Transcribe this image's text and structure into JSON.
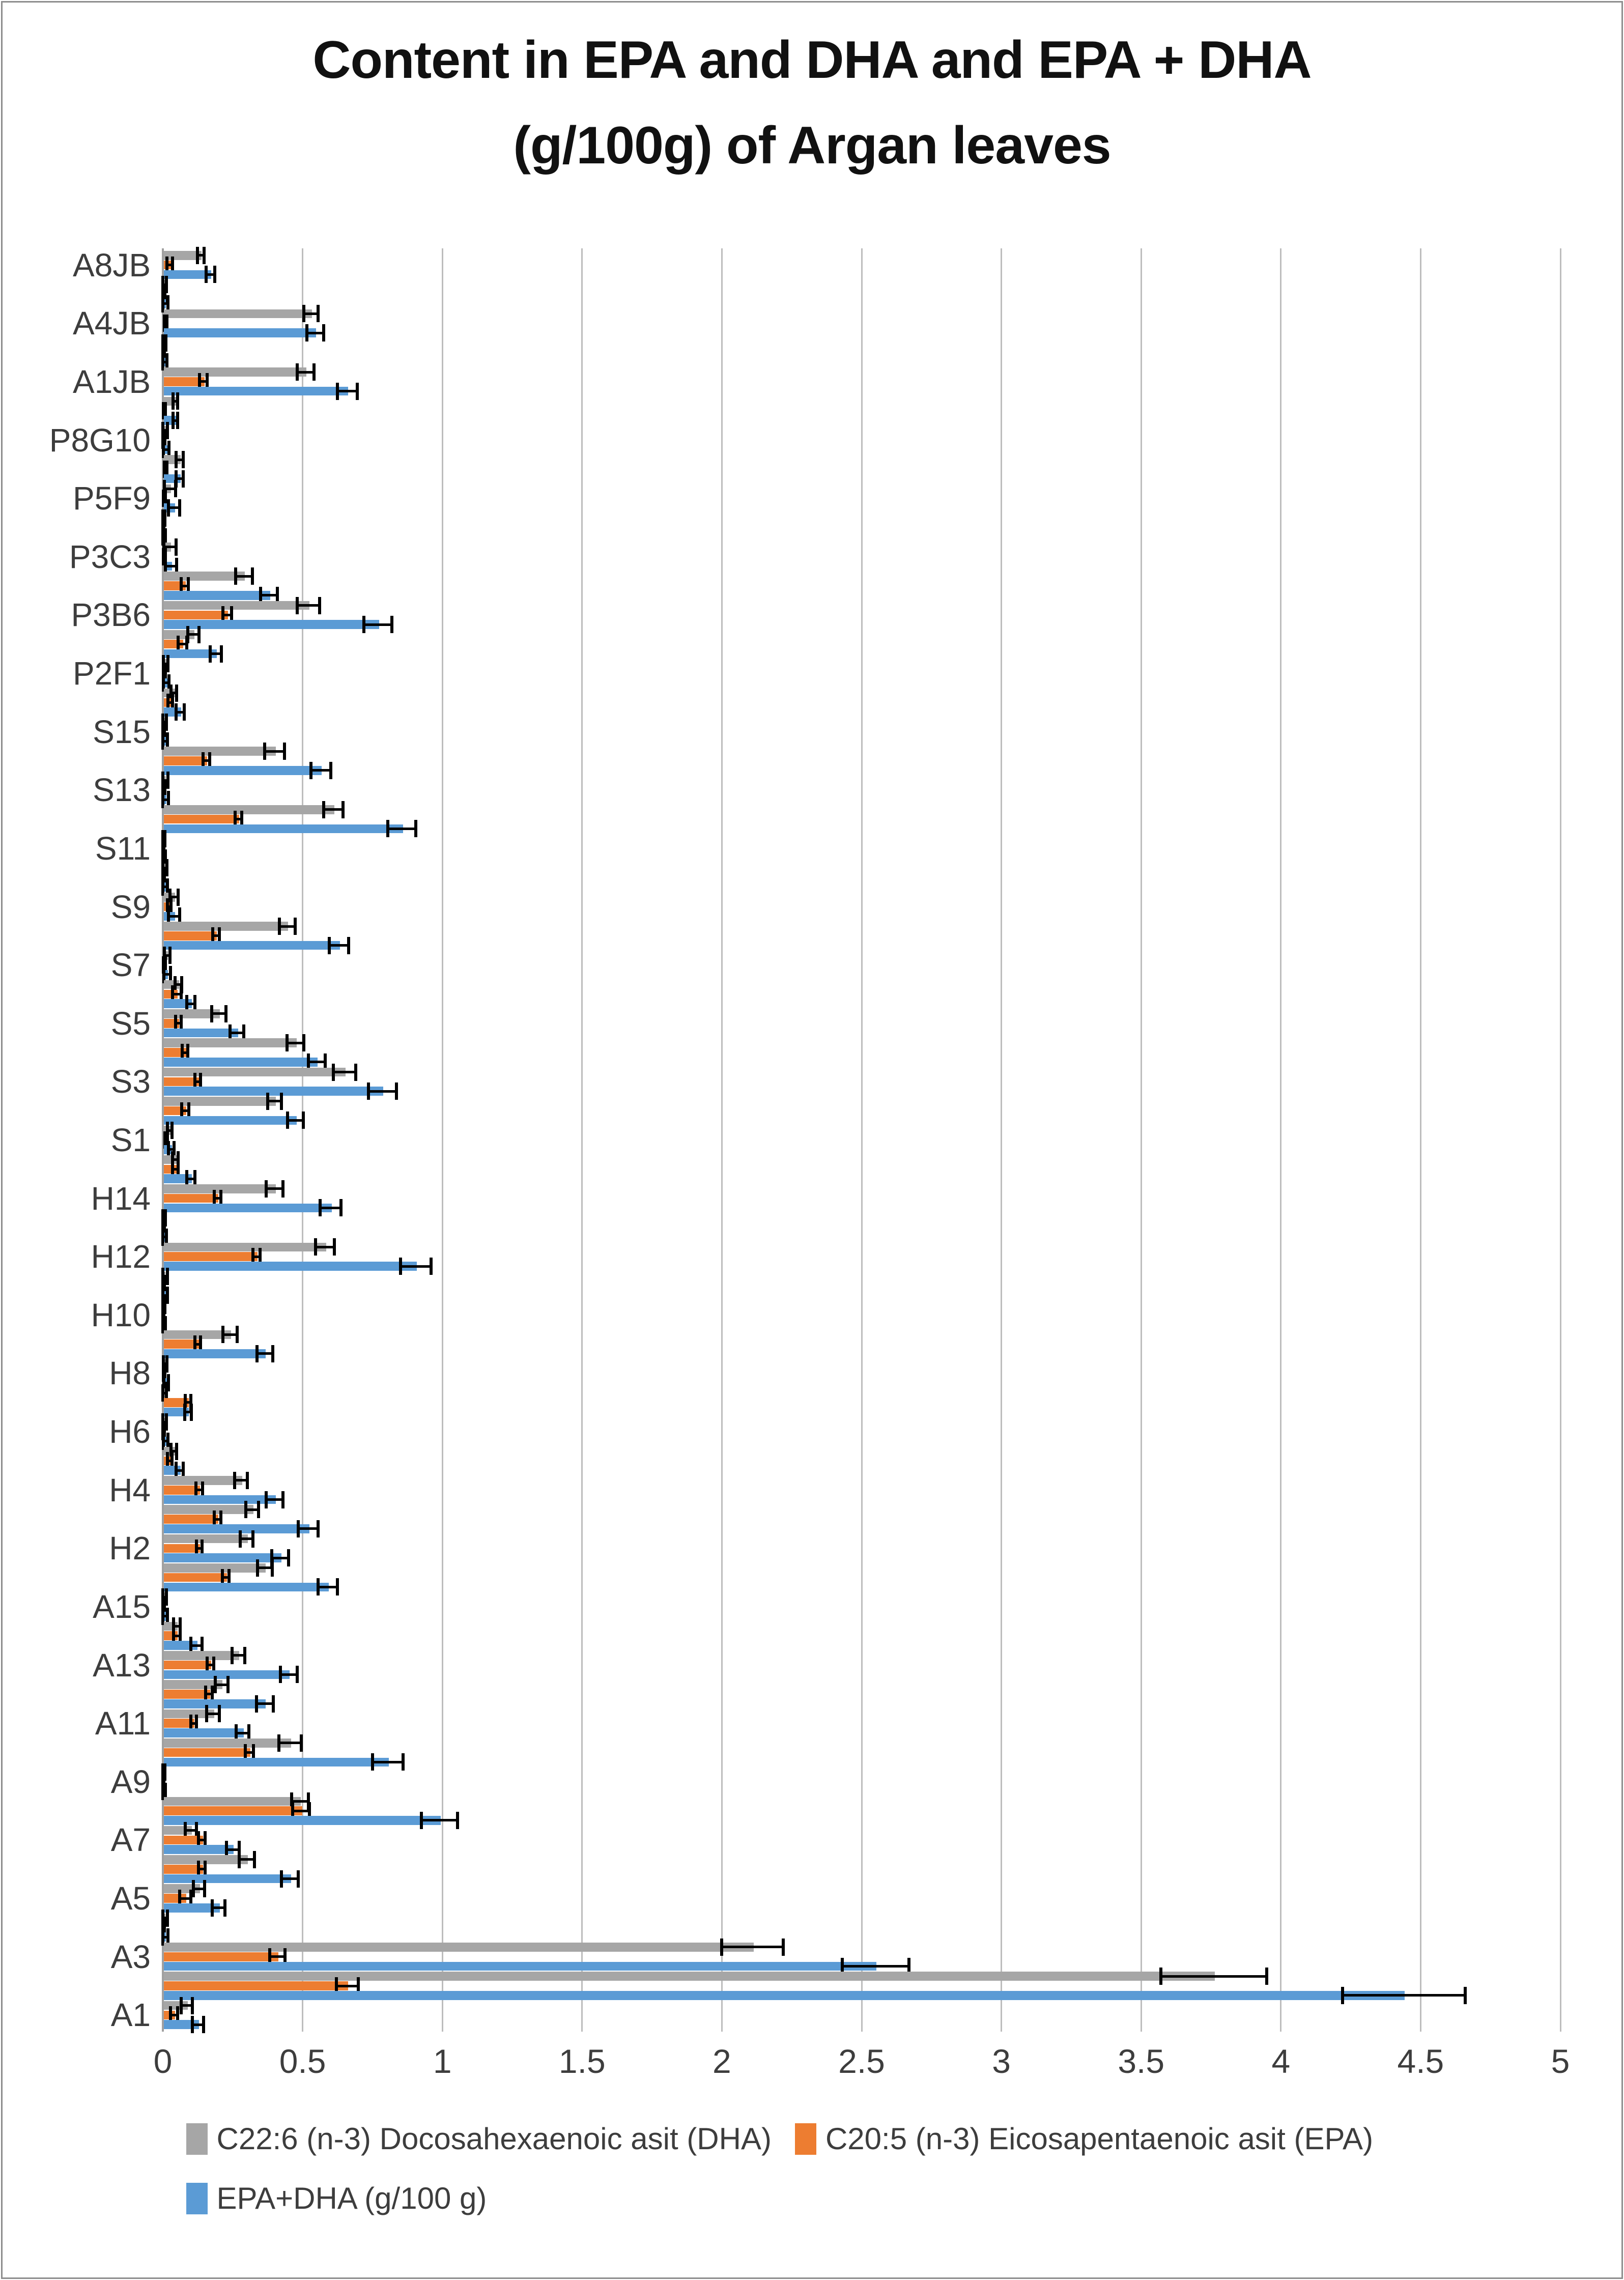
{
  "title": {
    "line1": "Content in EPA and DHA and EPA + DHA",
    "line2": "(g/100g) of Argan leaves"
  },
  "colors": {
    "dha": "#A6A6A6",
    "epa": "#ED7D31",
    "sum": "#5B9BD5",
    "error_bar": "#000000",
    "gridline": "#BDBDBD",
    "axis_line": "#A0A0A0",
    "text": "#3D3D3D",
    "border": "#8C8C8C",
    "background": "#FFFFFF"
  },
  "legend": [
    {
      "key": "dha",
      "label": "C22:6 (n-3) Docosahexaenoic asit (DHA)",
      "color": "#A6A6A6"
    },
    {
      "key": "epa",
      "label": "C20:5 (n-3) Eicosapentaenoic asit (EPA)",
      "color": "#ED7D31"
    },
    {
      "key": "sum",
      "label": "EPA+DHA (g/100 g)",
      "color": "#5B9BD5"
    }
  ],
  "chart_data": {
    "type": "bar",
    "orientation": "horizontal",
    "title": "Content in EPA and DHA and EPA + DHA (g/100g) of Argan leaves",
    "xlabel": "",
    "ylabel": "",
    "xlim": [
      0,
      5
    ],
    "grid": true,
    "legend_position": "bottom",
    "x_ticks": [
      "0",
      "0.5",
      "1",
      "1.5",
      "2",
      "2.5",
      "3",
      "3.5",
      "4",
      "4.5",
      "5"
    ],
    "units": "g/100g",
    "series": [
      {
        "key": "dha",
        "name": "C22:6 (n-3) Docosahexaenoic asit (DHA)",
        "color": "#A6A6A6"
      },
      {
        "key": "epa",
        "name": "C20:5 (n-3) Eicosapentaenoic asit (EPA)",
        "color": "#ED7D31"
      },
      {
        "key": "sum",
        "name": "EPA+DHA (g/100 g)",
        "color": "#5B9BD5"
      }
    ],
    "note": "v = [DHA, EPA, EPA+DHA] values; e = symmetric error bar half-widths; unlabeled rows are intermediate samples shown without axis text",
    "categories": [
      {
        "label": "A8JB",
        "v": [
          0.135,
          0.025,
          0.17
        ],
        "e": [
          0.012,
          0.01,
          0.015
        ]
      },
      {
        "label": "",
        "v": [
          0.005,
          0.003,
          0.008
        ],
        "e": [
          0.008,
          0.004,
          0.01
        ]
      },
      {
        "label": "A4JB",
        "v": [
          0.53,
          0.01,
          0.545
        ],
        "e": [
          0.025,
          0.005,
          0.03
        ]
      },
      {
        "label": "",
        "v": [
          0.005,
          0.003,
          0.006
        ],
        "e": [
          0.006,
          0.003,
          0.008
        ]
      },
      {
        "label": "A1JB",
        "v": [
          0.51,
          0.145,
          0.66
        ],
        "e": [
          0.03,
          0.013,
          0.036
        ]
      },
      {
        "label": "",
        "v": [
          0.045,
          0.005,
          0.045
        ],
        "e": [
          0.008,
          0.004,
          0.008
        ]
      },
      {
        "label": "P8G10",
        "v": [
          0.008,
          0.004,
          0.012
        ],
        "e": [
          0.008,
          0.004,
          0.01
        ]
      },
      {
        "label": "",
        "v": [
          0.06,
          0.01,
          0.06
        ],
        "e": [
          0.012,
          0.005,
          0.012
        ]
      },
      {
        "label": "P5F9",
        "v": [
          0.025,
          0.006,
          0.04
        ],
        "e": [
          0.02,
          0.004,
          0.02
        ]
      },
      {
        "label": "",
        "v": [
          0.004,
          0.002,
          0.005
        ],
        "e": [
          0.004,
          0.002,
          0.005
        ]
      },
      {
        "label": "P3C3",
        "v": [
          0.025,
          0.006,
          0.03
        ],
        "e": [
          0.022,
          0.004,
          0.02
        ]
      },
      {
        "label": "",
        "v": [
          0.29,
          0.078,
          0.38
        ],
        "e": [
          0.03,
          0.013,
          0.03
        ]
      },
      {
        "label": "P3B6",
        "v": [
          0.52,
          0.23,
          0.77
        ],
        "e": [
          0.04,
          0.015,
          0.05
        ]
      },
      {
        "label": "",
        "v": [
          0.11,
          0.07,
          0.19
        ],
        "e": [
          0.02,
          0.015,
          0.02
        ]
      },
      {
        "label": "P2F1",
        "v": [
          0.01,
          0.005,
          0.012
        ],
        "e": [
          0.008,
          0.004,
          0.01
        ]
      },
      {
        "label": "",
        "v": [
          0.04,
          0.026,
          0.062
        ],
        "e": [
          0.01,
          0.008,
          0.015
        ]
      },
      {
        "label": "S15",
        "v": [
          0.006,
          0.003,
          0.008
        ],
        "e": [
          0.006,
          0.003,
          0.008
        ]
      },
      {
        "label": "",
        "v": [
          0.4,
          0.155,
          0.565
        ],
        "e": [
          0.035,
          0.012,
          0.035
        ]
      },
      {
        "label": "S13",
        "v": [
          0.008,
          0.004,
          0.01
        ],
        "e": [
          0.01,
          0.004,
          0.01
        ]
      },
      {
        "label": "",
        "v": [
          0.61,
          0.27,
          0.855
        ],
        "e": [
          0.035,
          0.012,
          0.05
        ]
      },
      {
        "label": "S11",
        "v": [
          0.004,
          0.002,
          0.005
        ],
        "e": [
          0.004,
          0.002,
          0.005
        ]
      },
      {
        "label": "",
        "v": [
          0.006,
          0.003,
          0.008
        ],
        "e": [
          0.008,
          0.003,
          0.008
        ]
      },
      {
        "label": "S9",
        "v": [
          0.04,
          0.023,
          0.04
        ],
        "e": [
          0.015,
          0.006,
          0.02
        ]
      },
      {
        "label": "",
        "v": [
          0.445,
          0.19,
          0.63
        ],
        "e": [
          0.028,
          0.012,
          0.035
        ]
      },
      {
        "label": "S7",
        "v": [
          0.015,
          0.005,
          0.015
        ],
        "e": [
          0.01,
          0.004,
          0.012
        ]
      },
      {
        "label": "",
        "v": [
          0.055,
          0.05,
          0.1
        ],
        "e": [
          0.012,
          0.015,
          0.015
        ]
      },
      {
        "label": "S5",
        "v": [
          0.2,
          0.055,
          0.265
        ],
        "e": [
          0.025,
          0.01,
          0.025
        ]
      },
      {
        "label": "",
        "v": [
          0.475,
          0.08,
          0.55
        ],
        "e": [
          0.03,
          0.01,
          0.03
        ]
      },
      {
        "label": "S3",
        "v": [
          0.65,
          0.125,
          0.785
        ],
        "e": [
          0.04,
          0.01,
          0.05
        ]
      },
      {
        "label": "",
        "v": [
          0.4,
          0.08,
          0.475
        ],
        "e": [
          0.025,
          0.012,
          0.028
        ]
      },
      {
        "label": "S1",
        "v": [
          0.025,
          0.012,
          0.03
        ],
        "e": [
          0.008,
          0.005,
          0.01
        ]
      },
      {
        "label": "",
        "v": [
          0.045,
          0.045,
          0.1
        ],
        "e": [
          0.01,
          0.01,
          0.015
        ]
      },
      {
        "label": "H14",
        "v": [
          0.4,
          0.195,
          0.6
        ],
        "e": [
          0.03,
          0.012,
          0.038
        ]
      },
      {
        "label": "",
        "v": [
          0.005,
          0.003,
          0.006
        ],
        "e": [
          0.005,
          0.003,
          0.006
        ]
      },
      {
        "label": "H12",
        "v": [
          0.58,
          0.335,
          0.905
        ],
        "e": [
          0.033,
          0.012,
          0.055
        ]
      },
      {
        "label": "",
        "v": [
          0.006,
          0.003,
          0.008
        ],
        "e": [
          0.01,
          0.003,
          0.008
        ]
      },
      {
        "label": "H10",
        "v": [
          0.004,
          0.002,
          0.005
        ],
        "e": [
          0.004,
          0.002,
          0.005
        ]
      },
      {
        "label": "",
        "v": [
          0.24,
          0.125,
          0.365
        ],
        "e": [
          0.025,
          0.01,
          0.028
        ]
      },
      {
        "label": "H8",
        "v": [
          0.008,
          0.004,
          0.012
        ],
        "e": [
          0.006,
          0.003,
          0.008
        ]
      },
      {
        "label": "",
        "v": [
          0.005,
          0.09,
          0.09
        ],
        "e": [
          0.008,
          0.01,
          0.012
        ]
      },
      {
        "label": "H6",
        "v": [
          0.006,
          0.003,
          0.01
        ],
        "e": [
          0.006,
          0.003,
          0.008
        ]
      },
      {
        "label": "",
        "v": [
          0.04,
          0.025,
          0.06
        ],
        "e": [
          0.01,
          0.008,
          0.012
        ]
      },
      {
        "label": "H4",
        "v": [
          0.28,
          0.13,
          0.4
        ],
        "e": [
          0.023,
          0.012,
          0.03
        ]
      },
      {
        "label": "",
        "v": [
          0.32,
          0.195,
          0.52
        ],
        "e": [
          0.023,
          0.012,
          0.035
        ]
      },
      {
        "label": "H2",
        "v": [
          0.3,
          0.13,
          0.42
        ],
        "e": [
          0.023,
          0.01,
          0.03
        ]
      },
      {
        "label": "",
        "v": [
          0.365,
          0.225,
          0.59
        ],
        "e": [
          0.027,
          0.012,
          0.035
        ]
      },
      {
        "label": "A15",
        "v": [
          0.006,
          0.003,
          0.008
        ],
        "e": [
          0.006,
          0.003,
          0.008
        ]
      },
      {
        "label": "",
        "v": [
          0.05,
          0.05,
          0.12
        ],
        "e": [
          0.012,
          0.012,
          0.02
        ]
      },
      {
        "label": "A13",
        "v": [
          0.27,
          0.17,
          0.45
        ],
        "e": [
          0.023,
          0.012,
          0.03
        ]
      },
      {
        "label": "",
        "v": [
          0.21,
          0.165,
          0.365
        ],
        "e": [
          0.023,
          0.012,
          0.03
        ]
      },
      {
        "label": "A11",
        "v": [
          0.18,
          0.11,
          0.285
        ],
        "e": [
          0.023,
          0.01,
          0.023
        ]
      },
      {
        "label": "",
        "v": [
          0.455,
          0.31,
          0.805
        ],
        "e": [
          0.04,
          0.015,
          0.055
        ]
      },
      {
        "label": "A9",
        "v": [
          0.004,
          0.002,
          0.005
        ],
        "e": [
          0.004,
          0.002,
          0.005
        ]
      },
      {
        "label": "",
        "v": [
          0.49,
          0.495,
          0.99
        ],
        "e": [
          0.03,
          0.03,
          0.065
        ]
      },
      {
        "label": "A7",
        "v": [
          0.1,
          0.14,
          0.25
        ],
        "e": [
          0.02,
          0.012,
          0.023
        ]
      },
      {
        "label": "",
        "v": [
          0.3,
          0.14,
          0.455
        ],
        "e": [
          0.027,
          0.012,
          0.03
        ]
      },
      {
        "label": "A5",
        "v": [
          0.13,
          0.08,
          0.2
        ],
        "e": [
          0.02,
          0.02,
          0.023
        ]
      },
      {
        "label": "",
        "v": [
          0.006,
          0.003,
          0.008
        ],
        "e": [
          0.01,
          0.003,
          0.01
        ]
      },
      {
        "label": "A3",
        "v": [
          2.11,
          0.41,
          2.55
        ],
        "e": [
          0.11,
          0.027,
          0.12
        ]
      },
      {
        "label": "",
        "v": [
          3.76,
          0.66,
          4.44
        ],
        "e": [
          0.19,
          0.04,
          0.22
        ]
      },
      {
        "label": "A1",
        "v": [
          0.085,
          0.04,
          0.125
        ],
        "e": [
          0.02,
          0.012,
          0.02
        ]
      }
    ]
  }
}
